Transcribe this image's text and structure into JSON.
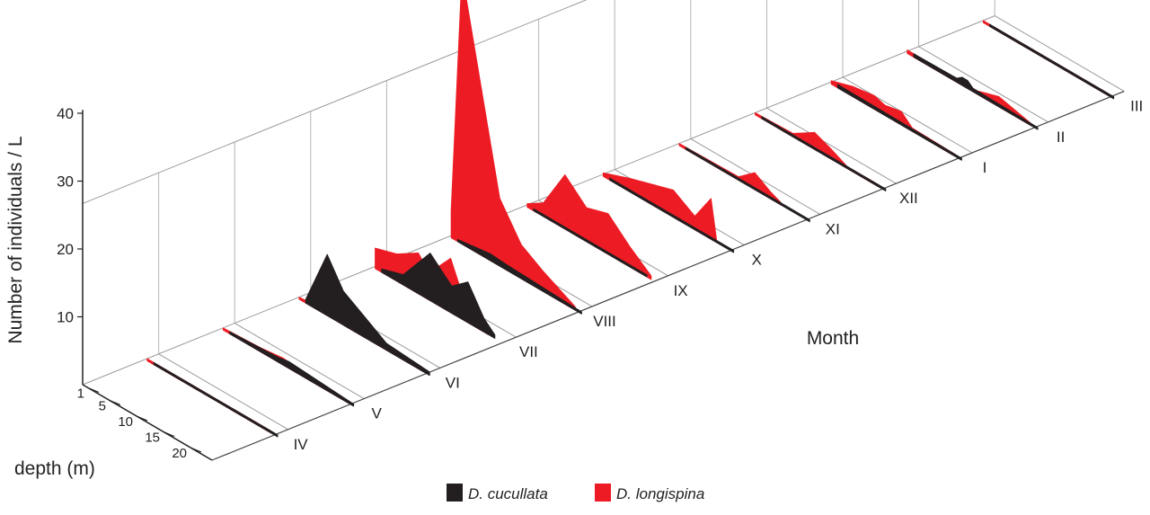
{
  "chart_data": {
    "type": "area",
    "title": "",
    "ylabel": "Number of individuals / L",
    "xlabel": "Month",
    "depth_label": "depth (m)",
    "ylim": [
      0,
      40
    ],
    "y_ticks": [
      10,
      20,
      30,
      40
    ],
    "depth_ticks": [
      1,
      5,
      10,
      15,
      20
    ],
    "depth_range": [
      0,
      24
    ],
    "months": [
      "IV",
      "V",
      "VI",
      "VII",
      "VIII",
      "IX",
      "X",
      "XI",
      "XII",
      "I",
      "II",
      "III"
    ],
    "series": [
      {
        "name": "D. cucullata",
        "color": "#231f20",
        "profiles": [
          [
            [
              1,
              0.3
            ],
            [
              24,
              0.3
            ]
          ],
          [
            [
              1,
              0.3
            ],
            [
              10,
              0.7
            ],
            [
              12,
              1
            ],
            [
              24,
              0.3
            ]
          ],
          [
            [
              1,
              0.5
            ],
            [
              5,
              9
            ],
            [
              8,
              5
            ],
            [
              12,
              3
            ],
            [
              16,
              1
            ],
            [
              24,
              0.5
            ]
          ],
          [
            [
              1,
              0.5
            ],
            [
              5,
              1.5
            ],
            [
              10,
              7
            ],
            [
              14,
              4
            ],
            [
              17,
              6
            ],
            [
              20,
              2
            ],
            [
              22,
              0.5
            ]
          ],
          [
            [
              1,
              0.3
            ],
            [
              7,
              1
            ],
            [
              10,
              0.8
            ],
            [
              24,
              0.3
            ]
          ],
          [
            [
              1,
              0.3
            ],
            [
              22,
              0.3
            ]
          ],
          [
            [
              1,
              0.3
            ],
            [
              24,
              0.3
            ]
          ],
          [
            [
              1,
              0.3
            ],
            [
              24,
              0.3
            ]
          ],
          [
            [
              1,
              0.3
            ],
            [
              24,
              0.3
            ]
          ],
          [
            [
              1,
              0.5
            ],
            [
              24,
              0.3
            ]
          ],
          [
            [
              1,
              0.5
            ],
            [
              9,
              0.6
            ],
            [
              10,
              1.2
            ],
            [
              11,
              1.2
            ],
            [
              12,
              0.5
            ],
            [
              24,
              0.3
            ]
          ],
          [
            [
              1,
              0.3
            ],
            [
              24,
              0.3
            ]
          ]
        ]
      },
      {
        "name": "D. longispina",
        "color": "#ed1c24",
        "profiles": [
          [
            [
              1,
              0.3
            ],
            [
              24,
              0.3
            ]
          ],
          [
            [
              1,
              0.3
            ],
            [
              8,
              0.6
            ],
            [
              12,
              1
            ],
            [
              24,
              0.3
            ]
          ],
          [
            [
              1,
              0.3
            ],
            [
              4,
              0.5
            ],
            [
              24,
              0.3
            ]
          ],
          [
            [
              1,
              3
            ],
            [
              5,
              4
            ],
            [
              9,
              6
            ],
            [
              11,
              4
            ],
            [
              15,
              8
            ],
            [
              18,
              2
            ],
            [
              22,
              1
            ]
          ],
          [
            [
              1,
              4
            ],
            [
              3,
              40
            ],
            [
              10,
              10
            ],
            [
              14,
              5
            ],
            [
              18,
              3
            ],
            [
              24,
              0.5
            ]
          ],
          [
            [
              1,
              0.5
            ],
            [
              4,
              2
            ],
            [
              8,
              8
            ],
            [
              12,
              5
            ],
            [
              16,
              6
            ],
            [
              20,
              3
            ],
            [
              24,
              0.5
            ]
          ],
          [
            [
              1,
              0.5
            ],
            [
              6,
              2
            ],
            [
              10,
              3
            ],
            [
              14,
              4
            ],
            [
              18,
              2
            ],
            [
              21,
              6
            ],
            [
              22,
              0.5
            ]
          ],
          [
            [
              1,
              0.3
            ],
            [
              12,
              0.5
            ],
            [
              15,
              2.5
            ],
            [
              18,
              1
            ],
            [
              20,
              0.3
            ]
          ],
          [
            [
              1,
              0.3
            ],
            [
              8,
              0.5
            ],
            [
              12,
              2.5
            ],
            [
              15,
              1.5
            ],
            [
              18,
              0.3
            ],
            [
              24,
              0.3
            ]
          ],
          [
            [
              1,
              0.5
            ],
            [
              5,
              1.5
            ],
            [
              9,
              2
            ],
            [
              11,
              1.5
            ],
            [
              14,
              2
            ],
            [
              16,
              0.5
            ],
            [
              24,
              0.3
            ]
          ],
          [
            [
              1,
              0.5
            ],
            [
              14,
              0.5
            ],
            [
              18,
              1.5
            ],
            [
              24,
              0.3
            ]
          ],
          [
            [
              1,
              0.3
            ],
            [
              24,
              0.3
            ]
          ]
        ]
      }
    ],
    "legend_position": "bottom"
  }
}
